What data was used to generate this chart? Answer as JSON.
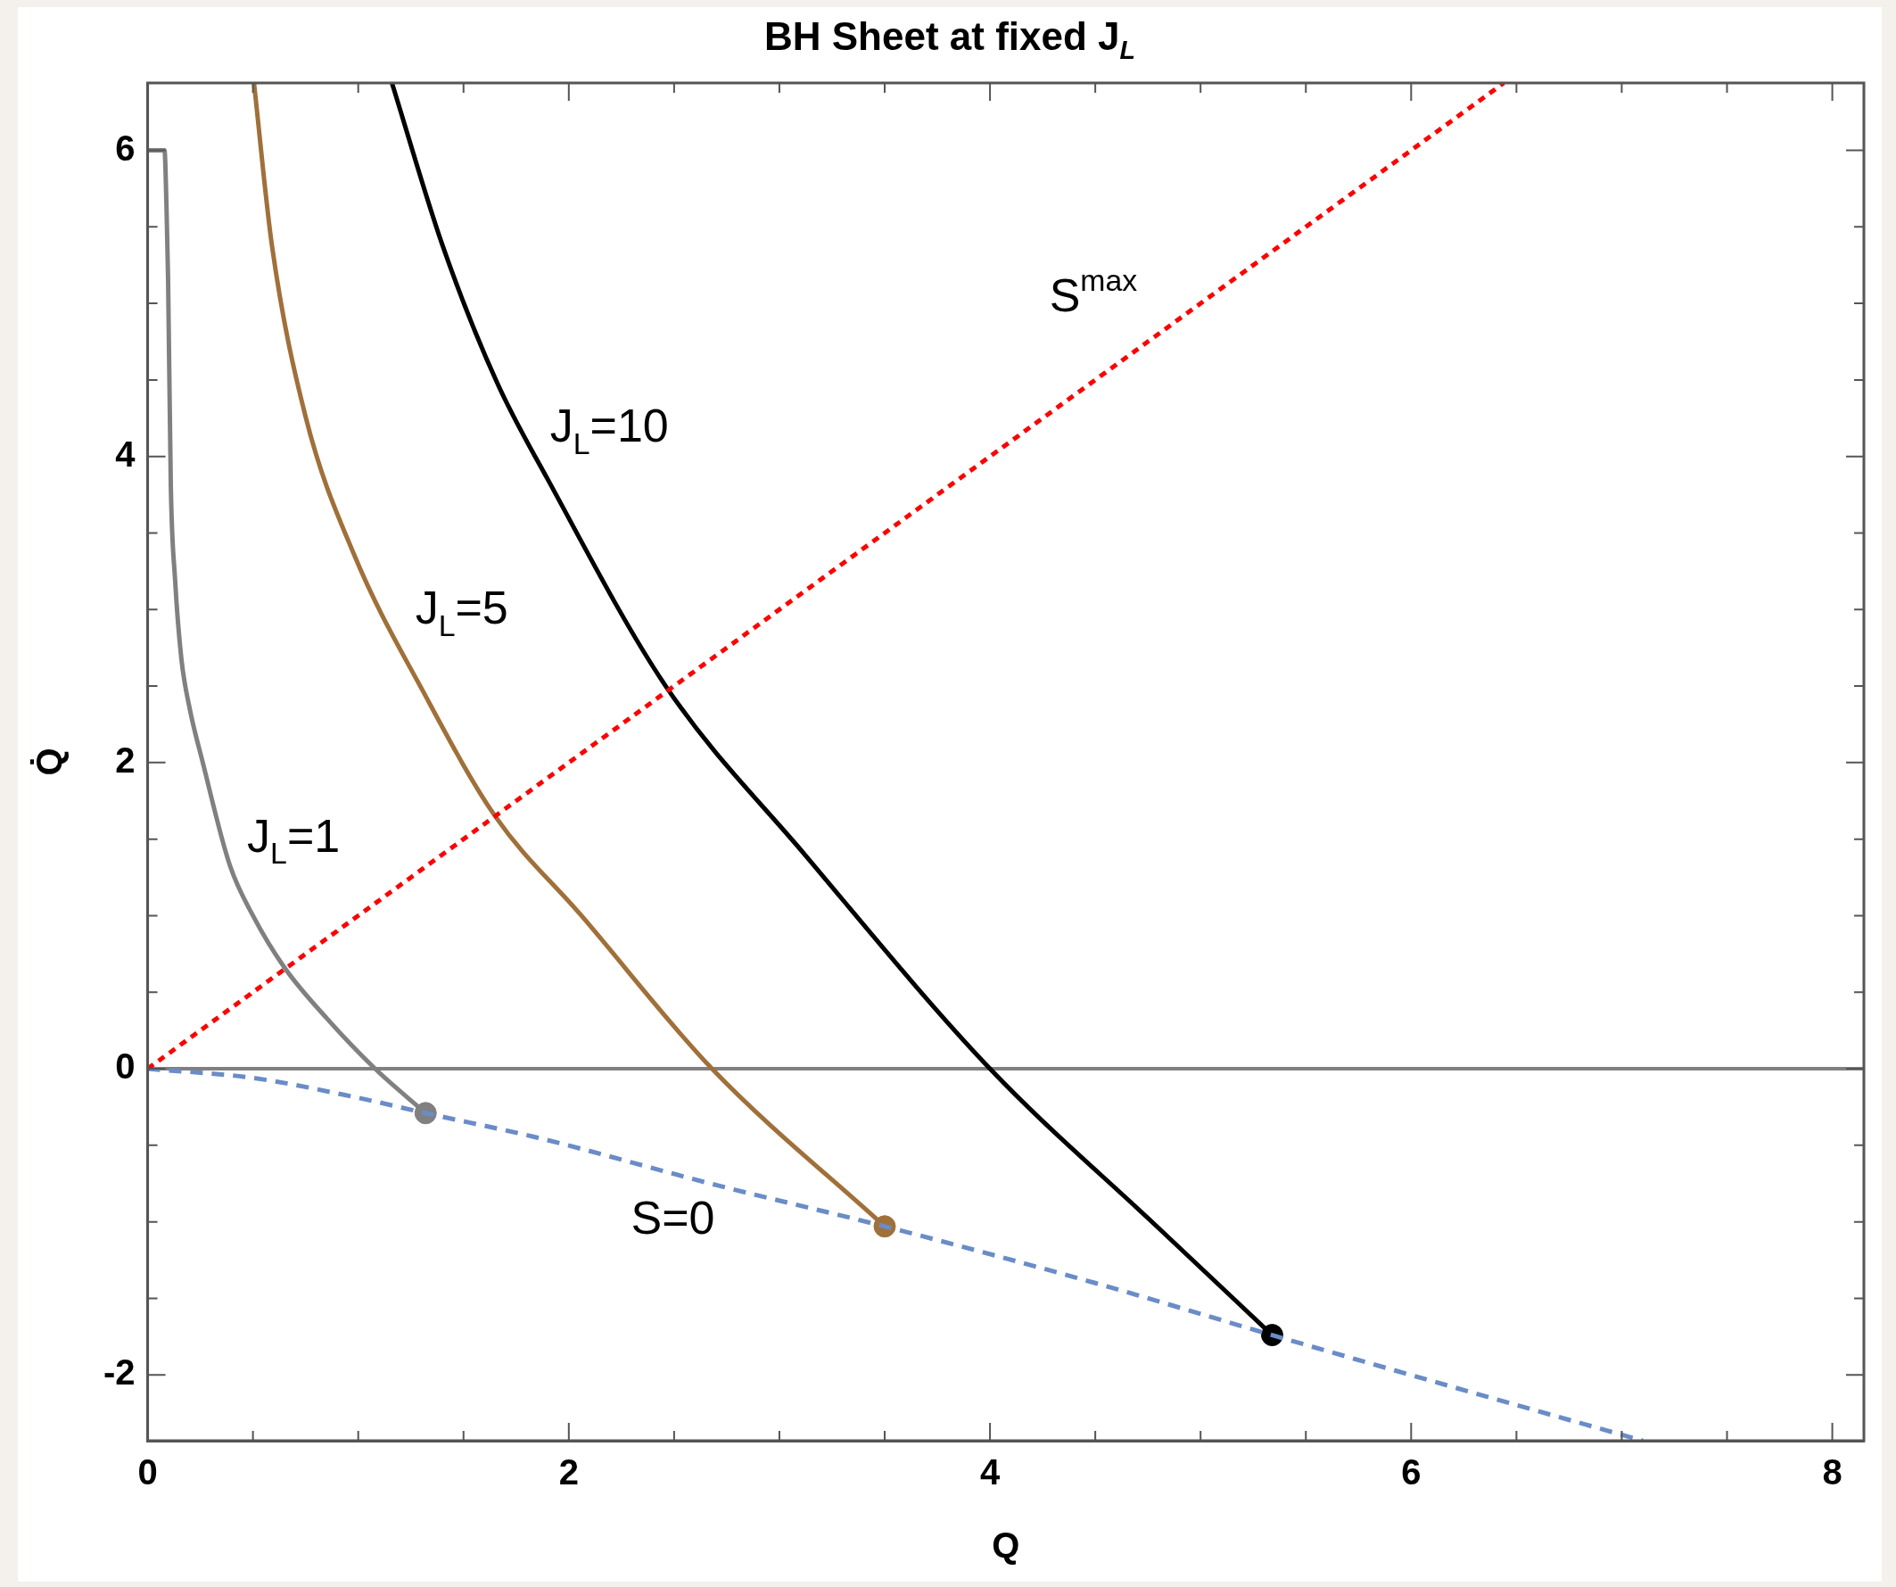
{
  "chart_data": {
    "type": "line",
    "title": "BH Sheet at fixed J$_{L}$",
    "xlabel": "Q",
    "ylabel": "Q̇",
    "xlim": [
      0,
      8.15
    ],
    "ylim": [
      -2.43,
      6.44
    ],
    "xticks": [
      0,
      {
        "value": 0.5,
        "label": null
      },
      {
        "value": 1,
        "label": null
      },
      {
        "value": 1.5,
        "label": null
      },
      2,
      {
        "value": 2.5,
        "label": null
      },
      {
        "value": 3,
        "label": null
      },
      {
        "value": 3.5,
        "label": null
      },
      4,
      {
        "value": 4.5,
        "label": null
      },
      {
        "value": 5,
        "label": null
      },
      {
        "value": 5.5,
        "label": null
      },
      6,
      {
        "value": 6.5,
        "label": null
      },
      {
        "value": 7,
        "label": null
      },
      {
        "value": 7.5,
        "label": null
      },
      8
    ],
    "yticks": [
      {
        "value": -2,
        "label": "-2"
      },
      {
        "value": -1.5,
        "label": null
      },
      {
        "value": -1,
        "label": null
      },
      {
        "value": -0.5,
        "label": null
      },
      0,
      {
        "value": 0.5,
        "label": null
      },
      {
        "value": 1,
        "label": null
      },
      {
        "value": 1.5,
        "label": null
      },
      2,
      {
        "value": 2.5,
        "label": null
      },
      {
        "value": 3,
        "label": null
      },
      {
        "value": 3.5,
        "label": null
      },
      4,
      {
        "value": 4.5,
        "label": null
      },
      {
        "value": 5,
        "label": null
      },
      {
        "value": 5.5,
        "label": null
      },
      6
    ],
    "marker": "none",
    "ref_lines": [
      {
        "axis": "y",
        "value": 0,
        "color": "#808080"
      }
    ],
    "series": [
      {
        "name": "S$^{max}$",
        "color": "#ff0000",
        "line_style": "dotted",
        "x": [
          0,
          6.44
        ],
        "values": [
          0,
          6.44
        ]
      },
      {
        "name": "S=0",
        "color": "#6a8cc7",
        "line_style": "dashed",
        "x": [
          0,
          0.5,
          1,
          1.32,
          1.85,
          2.7,
          3.5,
          4.5,
          5.34,
          6.2,
          7.1
        ],
        "values": [
          0,
          -0.06,
          -0.19,
          -0.29,
          -0.45,
          -0.76,
          -1.03,
          -1.4,
          -1.74,
          -2.08,
          -2.43
        ]
      },
      {
        "name": "J$_{L}$=1",
        "color": "#808080",
        "line_style": "solid",
        "x": [
          0,
          0.08,
          0.09,
          0.097,
          0.11,
          0.13,
          0.16,
          0.2,
          0.26,
          0.39,
          0.5,
          0.65,
          0.85,
          1.08,
          1.32
        ],
        "values": [
          6,
          6,
          5.6,
          5.16,
          3.81,
          3.2,
          2.68,
          2.35,
          2.01,
          1.33,
          1.0,
          0.66,
          0.33,
          0,
          -0.29
        ]
      },
      {
        "name": "J$_{L}$=5",
        "color": "#a0703a",
        "line_style": "solid",
        "x": [
          0.505,
          0.59,
          0.75,
          0.98,
          1.31,
          1.65,
          2.06,
          2.68,
          3.5
        ],
        "values": [
          6.44,
          5.38,
          4.26,
          3.36,
          2.46,
          1.65,
          1.0,
          0,
          -1.03
        ]
      },
      {
        "name": "J$_{L}$=10",
        "color": "#000000",
        "line_style": "solid",
        "x": [
          1.16,
          1.4,
          1.66,
          1.9,
          2.46,
          3.12,
          4,
          4.8,
          5.34
        ],
        "values": [
          6.44,
          5.38,
          4.48,
          3.85,
          2.5,
          1.4,
          0,
          -1.04,
          -1.74
        ]
      },
      {
        "type": "scatter",
        "marker": "circle",
        "colors": [
          "#808080",
          "#a0703a",
          "#000000"
        ],
        "x": [
          1.32,
          3.5,
          5.34
        ],
        "values": [
          -0.29,
          -1.03,
          -1.74
        ]
      }
    ]
  }
}
